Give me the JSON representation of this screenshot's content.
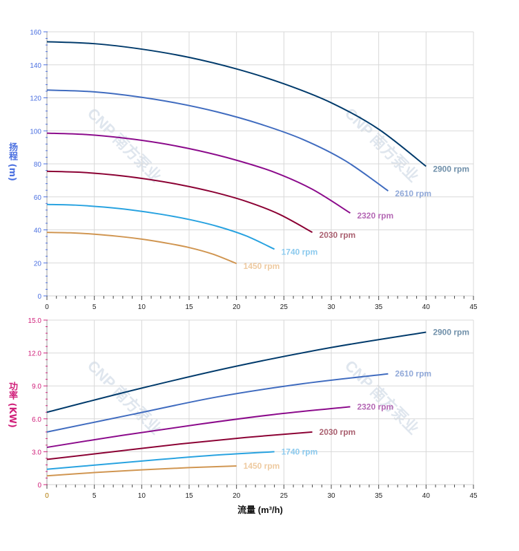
{
  "watermark": "CNP 南方泵业",
  "chart_data": [
    {
      "type": "line",
      "ylabel": "扬程 (m)",
      "xlim": [
        0,
        45
      ],
      "ylim": [
        0,
        160
      ],
      "x_ticks": [
        0,
        5,
        10,
        15,
        20,
        25,
        30,
        35,
        40,
        45
      ],
      "y_ticks": [
        0,
        20,
        40,
        60,
        80,
        100,
        120,
        140,
        160
      ],
      "y_tick_labels": [
        "0",
        "20",
        "40",
        "60",
        "80",
        "100",
        "120",
        "140",
        "160"
      ],
      "grid": true,
      "axis_label_color": "#4a6fe0",
      "series": [
        {
          "name": "2900 rpm",
          "color": "#003a6b",
          "label_color": "#7090aa",
          "x": [
            0,
            5,
            10,
            15,
            20,
            25,
            30,
            35,
            40
          ],
          "y": [
            154,
            152.8,
            149.5,
            144.5,
            137.5,
            128.5,
            117,
            101,
            78.5
          ]
        },
        {
          "name": "2610 rpm",
          "color": "#3f6bbf",
          "label_color": "#90a8d8",
          "x": [
            0,
            4.5,
            9,
            13.5,
            18,
            22.5,
            27,
            31.5,
            36
          ],
          "y": [
            124.7,
            123.8,
            121.1,
            117.0,
            111.4,
            104.1,
            94.8,
            81.8,
            63.6
          ]
        },
        {
          "name": "2320 rpm",
          "color": "#8b0a8b",
          "label_color": "#b468b4",
          "x": [
            0,
            4,
            8,
            12,
            16,
            20,
            24,
            28,
            32
          ],
          "y": [
            98.6,
            97.8,
            95.7,
            92.5,
            88.0,
            82.2,
            74.9,
            64.6,
            50.2
          ]
        },
        {
          "name": "2030 rpm",
          "color": "#8b0033",
          "label_color": "#aa6070",
          "x": [
            0,
            3.5,
            7,
            10.5,
            14,
            17.5,
            21,
            24.5,
            28
          ],
          "y": [
            75.5,
            74.9,
            73.3,
            70.8,
            67.4,
            63.0,
            57.3,
            49.5,
            38.5
          ]
        },
        {
          "name": "1740 rpm",
          "color": "#27a2e0",
          "label_color": "#8ccaee",
          "x": [
            0,
            3,
            6,
            9,
            12,
            15,
            18,
            21,
            24
          ],
          "y": [
            55.4,
            55.0,
            53.8,
            52.0,
            49.5,
            46.3,
            42.1,
            36.4,
            28.3
          ]
        },
        {
          "name": "1450 rpm",
          "color": "#d09550",
          "label_color": "#eecaa0",
          "x": [
            0,
            2.5,
            5,
            7.5,
            10,
            12.5,
            15,
            17.5,
            20
          ],
          "y": [
            38.5,
            38.2,
            37.4,
            36.1,
            34.4,
            32.1,
            29.3,
            25.3,
            19.6
          ]
        }
      ]
    },
    {
      "type": "line",
      "xlabel": "流量 (m³/h)",
      "ylabel": "功率 (KW)",
      "xlim": [
        0,
        45
      ],
      "ylim": [
        0,
        15
      ],
      "x_ticks": [
        0,
        5,
        10,
        15,
        20,
        25,
        30,
        35,
        40,
        45
      ],
      "y_ticks": [
        0,
        3,
        6,
        9,
        12,
        15
      ],
      "y_tick_labels": [
        "0",
        "3.0",
        "6.0",
        "9.0",
        "12.0",
        "15.0"
      ],
      "grid": true,
      "axis_label_color": "#d0207a",
      "series": [
        {
          "name": "2900 rpm",
          "color": "#003a6b",
          "label_color": "#7090aa",
          "x": [
            0,
            10,
            20,
            30,
            40
          ],
          "y": [
            6.6,
            8.8,
            10.8,
            12.5,
            13.9
          ]
        },
        {
          "name": "2610 rpm",
          "color": "#3f6bbf",
          "label_color": "#90a8d8",
          "x": [
            0,
            9,
            18,
            27,
            36
          ],
          "y": [
            4.8,
            6.4,
            8.0,
            9.2,
            10.1
          ]
        },
        {
          "name": "2320 rpm",
          "color": "#8b0a8b",
          "label_color": "#b468b4",
          "x": [
            0,
            8,
            16,
            24,
            32
          ],
          "y": [
            3.4,
            4.5,
            5.5,
            6.4,
            7.1
          ]
        },
        {
          "name": "2030 rpm",
          "color": "#8b0033",
          "label_color": "#aa6070",
          "x": [
            0,
            7,
            14,
            21,
            28
          ],
          "y": [
            2.3,
            3.0,
            3.7,
            4.3,
            4.8
          ]
        },
        {
          "name": "1740 rpm",
          "color": "#27a2e0",
          "label_color": "#8ccaee",
          "x": [
            0,
            6,
            12,
            18,
            24
          ],
          "y": [
            1.4,
            1.85,
            2.3,
            2.7,
            3.0
          ]
        },
        {
          "name": "1450 rpm",
          "color": "#d09550",
          "label_color": "#eecaa0",
          "x": [
            0,
            5,
            10,
            15,
            20
          ],
          "y": [
            0.8,
            1.1,
            1.35,
            1.55,
            1.7
          ]
        }
      ]
    }
  ]
}
